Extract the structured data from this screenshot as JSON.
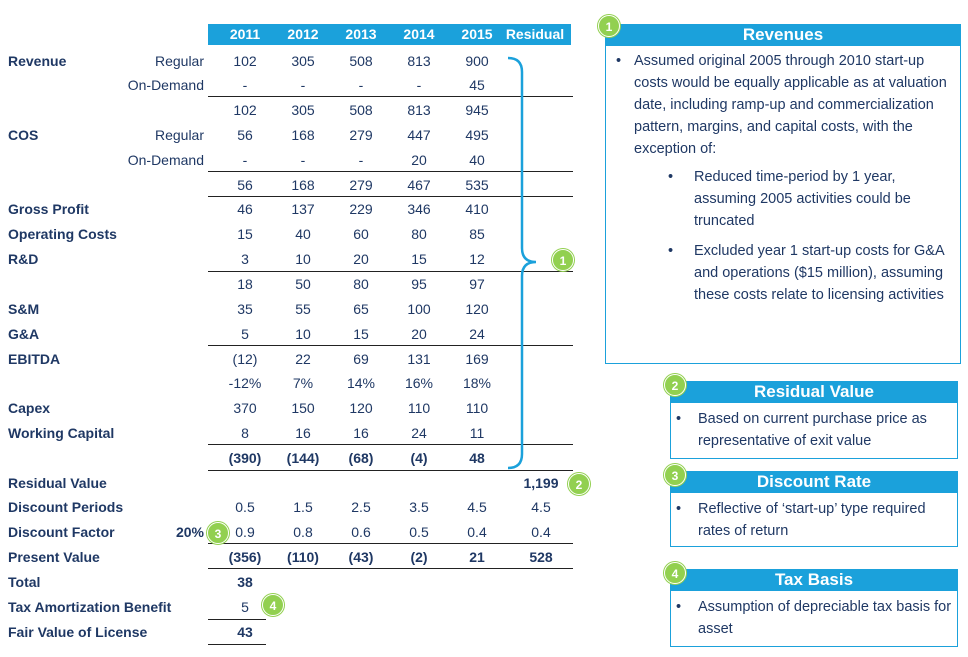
{
  "table": {
    "headers": [
      "2011",
      "2012",
      "2013",
      "2014",
      "2015",
      "Residual"
    ],
    "rows": {
      "revenue": {
        "label": "Revenue"
      },
      "revenue_regular": {
        "sub": "Regular",
        "values": [
          "102",
          "305",
          "508",
          "813",
          "900"
        ]
      },
      "revenue_ondemand": {
        "sub": "On-Demand",
        "values": [
          "-",
          "-",
          "-",
          "-",
          "45"
        ]
      },
      "revenue_total": {
        "values": [
          "102",
          "305",
          "508",
          "813",
          "945"
        ]
      },
      "cos": {
        "label": "COS"
      },
      "cos_regular": {
        "sub": "Regular",
        "values": [
          "56",
          "168",
          "279",
          "447",
          "495"
        ]
      },
      "cos_ondemand": {
        "sub": "On-Demand",
        "values": [
          "-",
          "-",
          "-",
          "20",
          "40"
        ]
      },
      "cos_total": {
        "values": [
          "56",
          "168",
          "279",
          "467",
          "535"
        ]
      },
      "gross_profit": {
        "label": "Gross Profit",
        "values": [
          "46",
          "137",
          "229",
          "346",
          "410"
        ]
      },
      "operating_costs": {
        "label": "Operating Costs",
        "values": [
          "15",
          "40",
          "60",
          "80",
          "85"
        ]
      },
      "rnd": {
        "label": "R&D",
        "values": [
          "3",
          "10",
          "20",
          "15",
          "12"
        ]
      },
      "opex_total": {
        "values": [
          "18",
          "50",
          "80",
          "95",
          "97"
        ]
      },
      "snm": {
        "label": "S&M",
        "values": [
          "35",
          "55",
          "65",
          "100",
          "120"
        ]
      },
      "gna": {
        "label": "G&A",
        "values": [
          "5",
          "10",
          "15",
          "20",
          "24"
        ]
      },
      "ebitda": {
        "label": "EBITDA",
        "values": [
          "(12)",
          "22",
          "69",
          "131",
          "169"
        ]
      },
      "ebitda_margin": {
        "values": [
          "-12%",
          "7%",
          "14%",
          "16%",
          "18%"
        ]
      },
      "capex": {
        "label": "Capex",
        "values": [
          "370",
          "150",
          "120",
          "110",
          "110"
        ]
      },
      "working_capital": {
        "label": "Working Capital",
        "values": [
          "8",
          "16",
          "16",
          "24",
          "11"
        ]
      },
      "cash_flow": {
        "values": [
          "(390)",
          "(144)",
          "(68)",
          "(4)",
          "48"
        ]
      },
      "residual_value": {
        "label": "Residual Value",
        "residual": "1,199"
      },
      "discount_periods": {
        "label": "Discount Periods",
        "values": [
          "0.5",
          "1.5",
          "2.5",
          "3.5",
          "4.5"
        ],
        "residual": "4.5"
      },
      "discount_factor": {
        "label": "Discount Factor",
        "rate": "20%",
        "values": [
          "0.9",
          "0.8",
          "0.6",
          "0.5",
          "0.4"
        ],
        "residual": "0.4"
      },
      "present_value": {
        "label": "Present Value",
        "values": [
          "(356)",
          "(110)",
          "(43)",
          "(2)",
          "21"
        ],
        "residual": "528"
      },
      "total": {
        "label": "Total",
        "value": "38"
      },
      "tax_amortization": {
        "label": "Tax Amortization Benefit",
        "value": "5"
      },
      "fair_value": {
        "label": "Fair Value of License",
        "value": "43"
      }
    }
  },
  "bubbles": {
    "b1": "1",
    "b2": "2",
    "b3": "3",
    "b4": "4"
  },
  "callouts": {
    "revenues": {
      "number": "1",
      "title": "Revenues",
      "bullet": "Assumed original 2005 through 2010 start-up costs would be equally applicable as at valuation date, including ramp-up and commercialization pattern, margins, and capital costs, with the exception of:",
      "sub_bullets": [
        "Reduced time-period by 1 year, assuming 2005 activities could be truncated",
        "Excluded year 1 start-up costs for G&A and operations ($15 million), assuming these costs relate to licensing activities"
      ]
    },
    "residual_value": {
      "number": "2",
      "title": "Residual Value",
      "bullet": "Based on current purchase price as representative of exit value"
    },
    "discount_rate": {
      "number": "3",
      "title": "Discount Rate",
      "bullet": "Reflective of ‘start-up’ type required rates of return"
    },
    "tax_basis": {
      "number": "4",
      "title": "Tax Basis",
      "bullet": "Assumption of depreciable tax basis for asset"
    }
  },
  "colors": {
    "accent": "#1ba1db",
    "bubble": "#92d050",
    "text": "#1f3864"
  }
}
